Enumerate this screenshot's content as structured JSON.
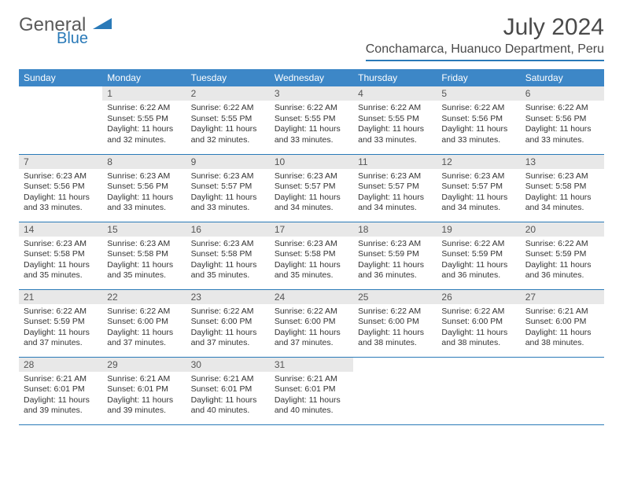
{
  "logo": {
    "general": "General",
    "blue": "Blue"
  },
  "title": "July 2024",
  "location": "Conchamarca, Huanuco Department, Peru",
  "colors": {
    "header_bg": "#3d87c7",
    "accent": "#2a7ab8",
    "daynum_bg": "#e8e8e8",
    "text": "#333333"
  },
  "weekdays": [
    "Sunday",
    "Monday",
    "Tuesday",
    "Wednesday",
    "Thursday",
    "Friday",
    "Saturday"
  ],
  "first_weekday": 1,
  "days": [
    {
      "n": 1,
      "sr": "6:22 AM",
      "ss": "5:55 PM",
      "dl": "11 hours and 32 minutes."
    },
    {
      "n": 2,
      "sr": "6:22 AM",
      "ss": "5:55 PM",
      "dl": "11 hours and 32 minutes."
    },
    {
      "n": 3,
      "sr": "6:22 AM",
      "ss": "5:55 PM",
      "dl": "11 hours and 33 minutes."
    },
    {
      "n": 4,
      "sr": "6:22 AM",
      "ss": "5:55 PM",
      "dl": "11 hours and 33 minutes."
    },
    {
      "n": 5,
      "sr": "6:22 AM",
      "ss": "5:56 PM",
      "dl": "11 hours and 33 minutes."
    },
    {
      "n": 6,
      "sr": "6:22 AM",
      "ss": "5:56 PM",
      "dl": "11 hours and 33 minutes."
    },
    {
      "n": 7,
      "sr": "6:23 AM",
      "ss": "5:56 PM",
      "dl": "11 hours and 33 minutes."
    },
    {
      "n": 8,
      "sr": "6:23 AM",
      "ss": "5:56 PM",
      "dl": "11 hours and 33 minutes."
    },
    {
      "n": 9,
      "sr": "6:23 AM",
      "ss": "5:57 PM",
      "dl": "11 hours and 33 minutes."
    },
    {
      "n": 10,
      "sr": "6:23 AM",
      "ss": "5:57 PM",
      "dl": "11 hours and 34 minutes."
    },
    {
      "n": 11,
      "sr": "6:23 AM",
      "ss": "5:57 PM",
      "dl": "11 hours and 34 minutes."
    },
    {
      "n": 12,
      "sr": "6:23 AM",
      "ss": "5:57 PM",
      "dl": "11 hours and 34 minutes."
    },
    {
      "n": 13,
      "sr": "6:23 AM",
      "ss": "5:58 PM",
      "dl": "11 hours and 34 minutes."
    },
    {
      "n": 14,
      "sr": "6:23 AM",
      "ss": "5:58 PM",
      "dl": "11 hours and 35 minutes."
    },
    {
      "n": 15,
      "sr": "6:23 AM",
      "ss": "5:58 PM",
      "dl": "11 hours and 35 minutes."
    },
    {
      "n": 16,
      "sr": "6:23 AM",
      "ss": "5:58 PM",
      "dl": "11 hours and 35 minutes."
    },
    {
      "n": 17,
      "sr": "6:23 AM",
      "ss": "5:58 PM",
      "dl": "11 hours and 35 minutes."
    },
    {
      "n": 18,
      "sr": "6:23 AM",
      "ss": "5:59 PM",
      "dl": "11 hours and 36 minutes."
    },
    {
      "n": 19,
      "sr": "6:22 AM",
      "ss": "5:59 PM",
      "dl": "11 hours and 36 minutes."
    },
    {
      "n": 20,
      "sr": "6:22 AM",
      "ss": "5:59 PM",
      "dl": "11 hours and 36 minutes."
    },
    {
      "n": 21,
      "sr": "6:22 AM",
      "ss": "5:59 PM",
      "dl": "11 hours and 37 minutes."
    },
    {
      "n": 22,
      "sr": "6:22 AM",
      "ss": "6:00 PM",
      "dl": "11 hours and 37 minutes."
    },
    {
      "n": 23,
      "sr": "6:22 AM",
      "ss": "6:00 PM",
      "dl": "11 hours and 37 minutes."
    },
    {
      "n": 24,
      "sr": "6:22 AM",
      "ss": "6:00 PM",
      "dl": "11 hours and 37 minutes."
    },
    {
      "n": 25,
      "sr": "6:22 AM",
      "ss": "6:00 PM",
      "dl": "11 hours and 38 minutes."
    },
    {
      "n": 26,
      "sr": "6:22 AM",
      "ss": "6:00 PM",
      "dl": "11 hours and 38 minutes."
    },
    {
      "n": 27,
      "sr": "6:21 AM",
      "ss": "6:00 PM",
      "dl": "11 hours and 38 minutes."
    },
    {
      "n": 28,
      "sr": "6:21 AM",
      "ss": "6:01 PM",
      "dl": "11 hours and 39 minutes."
    },
    {
      "n": 29,
      "sr": "6:21 AM",
      "ss": "6:01 PM",
      "dl": "11 hours and 39 minutes."
    },
    {
      "n": 30,
      "sr": "6:21 AM",
      "ss": "6:01 PM",
      "dl": "11 hours and 40 minutes."
    },
    {
      "n": 31,
      "sr": "6:21 AM",
      "ss": "6:01 PM",
      "dl": "11 hours and 40 minutes."
    }
  ],
  "labels": {
    "sunrise": "Sunrise:",
    "sunset": "Sunset:",
    "daylight": "Daylight:"
  }
}
